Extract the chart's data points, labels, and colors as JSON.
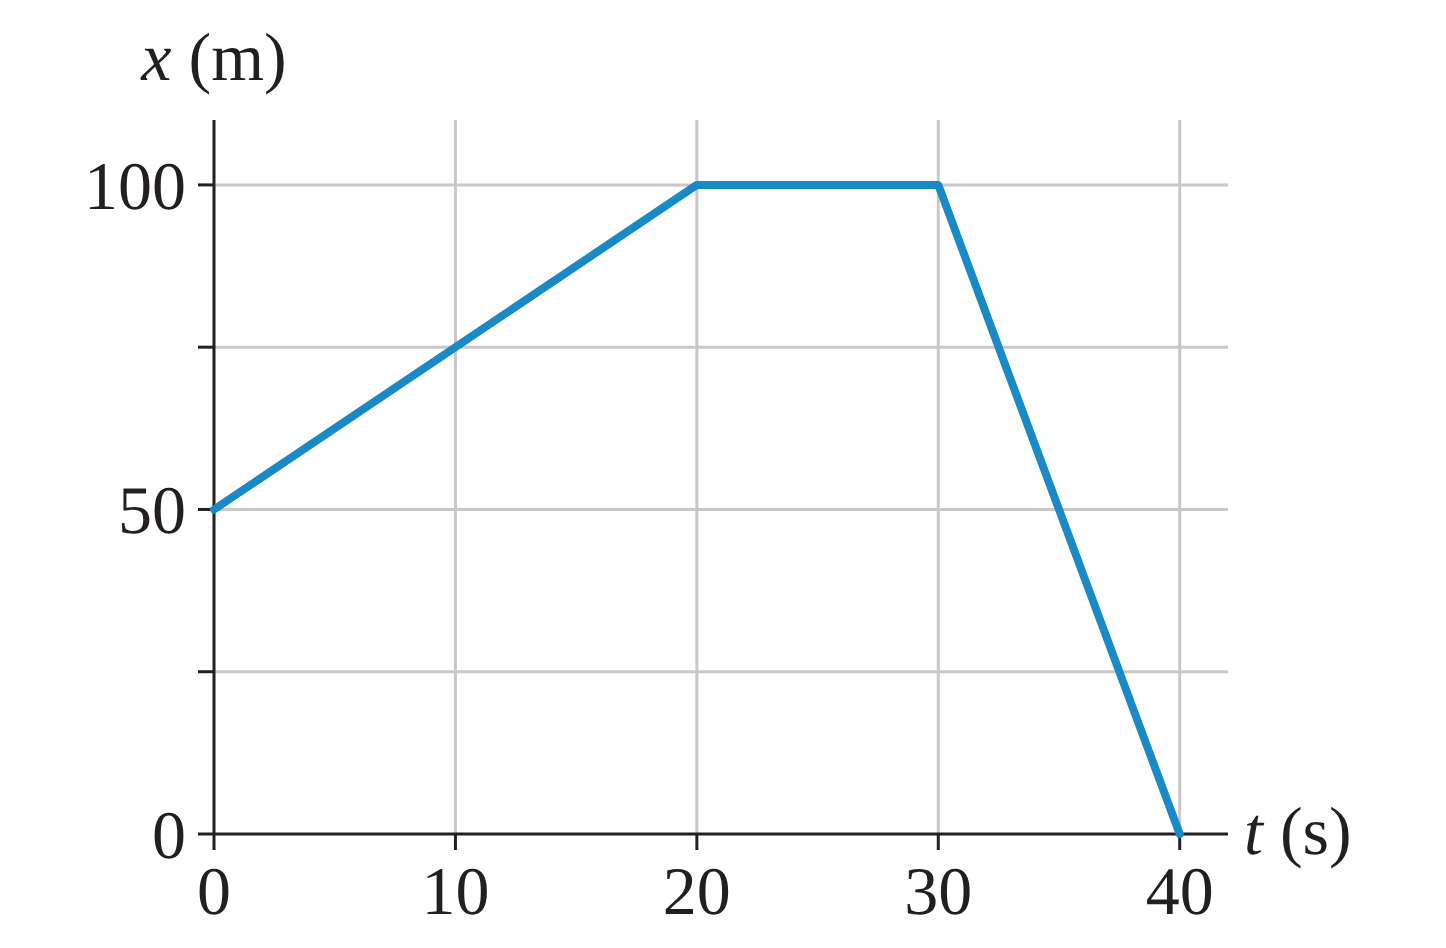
{
  "chart_data": {
    "type": "line",
    "xlabel": "t (s)",
    "ylabel": "x (m)",
    "x": [
      0,
      20,
      30,
      40
    ],
    "series": [
      {
        "color": "#1a8ac6",
        "values": [
          50,
          100,
          100,
          0
        ]
      }
    ],
    "xlim": [
      0,
      42
    ],
    "ylim": [
      0,
      110
    ],
    "xticks": [
      0,
      10,
      20,
      30,
      40
    ],
    "yticks": [
      0,
      {
        "value": 25,
        "label": null
      },
      50,
      {
        "value": 75,
        "label": null
      },
      100
    ],
    "grid": true,
    "marker": "none",
    "line_style": "solid"
  }
}
